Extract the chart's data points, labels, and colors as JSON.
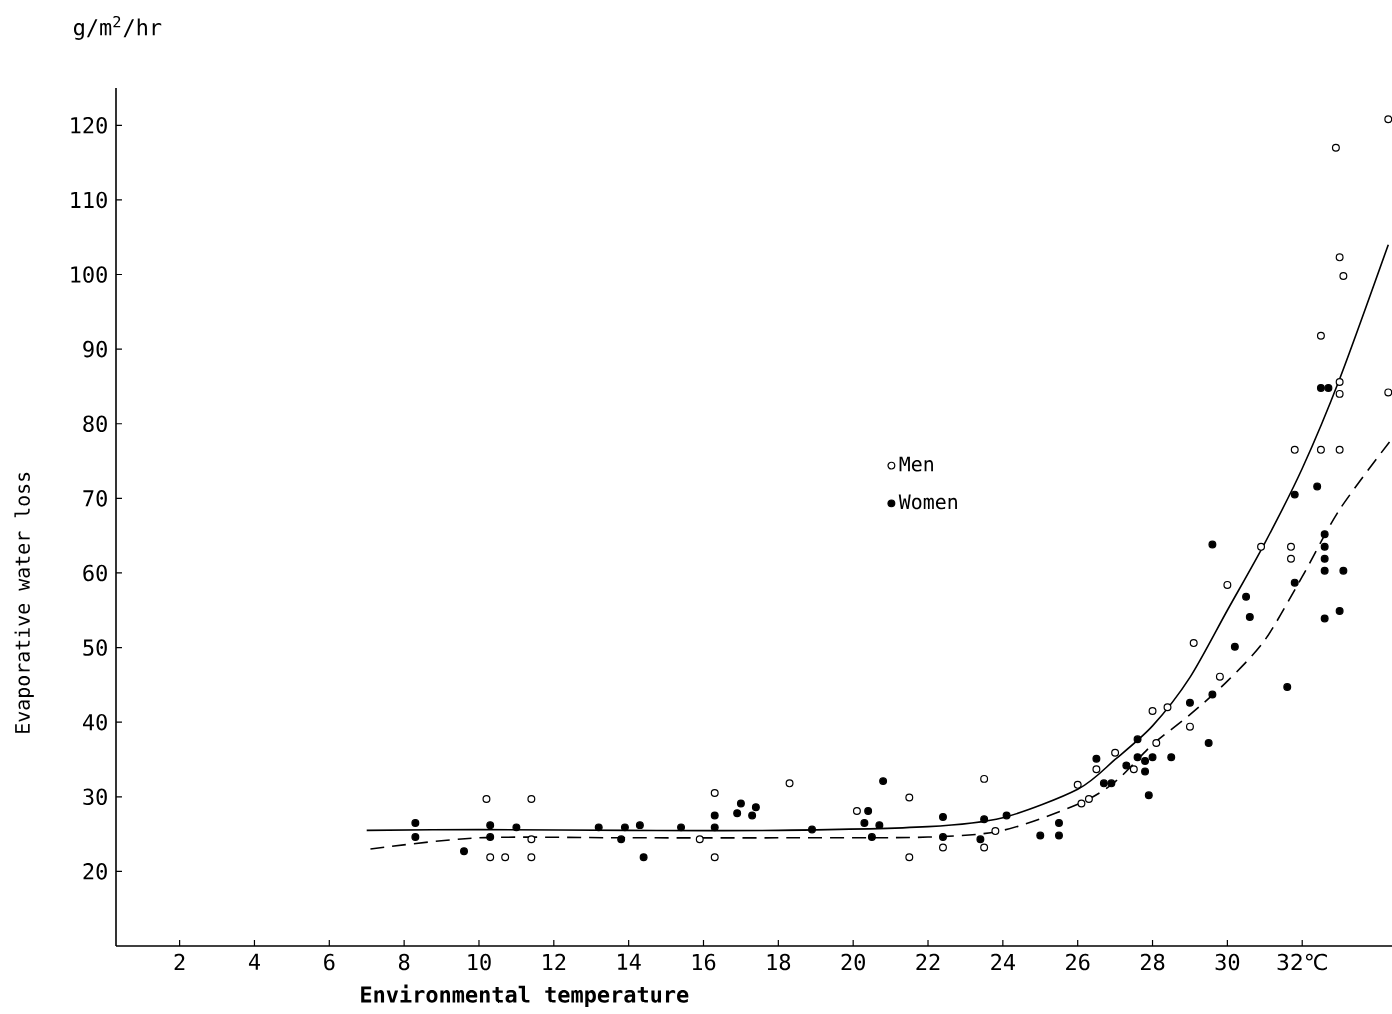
{
  "chart_data": {
    "type": "scatter",
    "xlabel": "Environmental temperature",
    "ylabel": "Evaporative water loss",
    "annotations": [
      "g/m$^{2}$/hr"
    ],
    "xlim": [
      0.3,
      34.4
    ],
    "ylim": [
      10,
      125
    ],
    "xticks": [
      2,
      4,
      6,
      8,
      10,
      12,
      14,
      16,
      18,
      20,
      22,
      24,
      26,
      28,
      30,
      {
        "value": 32,
        "label": "32℃"
      }
    ],
    "yticks": [
      20,
      30,
      40,
      50,
      60,
      70,
      80,
      90,
      100,
      110,
      120
    ],
    "grid": false,
    "legend": "center",
    "series": [
      {
        "name": "Men",
        "color": "#000000",
        "marker": "circle",
        "x": [
          34.3,
          32.9,
          33.0,
          33.1,
          32.5,
          33.0,
          33.0,
          34.3,
          31.8,
          32.5,
          33.0,
          30.9,
          31.7,
          31.7,
          30.0,
          29.1,
          29.8,
          28.4,
          28.0,
          29.0,
          28.1,
          27.0,
          26.5,
          27.5,
          26.0,
          26.1,
          26.3,
          18.3,
          23.5,
          21.5,
          20.1,
          23.8,
          22.4,
          23.5,
          21.5,
          10.2,
          11.4,
          11.4,
          10.3,
          10.7,
          11.4,
          16.3,
          15.9,
          16.3
        ],
        "values": [
          120.8,
          117.0,
          102.3,
          99.8,
          91.8,
          85.6,
          84.0,
          84.2,
          76.5,
          76.5,
          76.5,
          63.5,
          63.5,
          61.9,
          58.4,
          50.6,
          46.1,
          42.0,
          41.5,
          39.4,
          37.2,
          35.9,
          33.7,
          33.7,
          31.6,
          29.1,
          29.7,
          31.8,
          32.4,
          29.9,
          28.1,
          25.4,
          23.2,
          23.2,
          21.9,
          29.7,
          29.7,
          24.3,
          21.9,
          21.9,
          21.9,
          30.5,
          24.3,
          21.9
        ]
      },
      {
        "name": "Women",
        "color": "#000000",
        "marker": "circle",
        "x": [
          32.5,
          32.7,
          32.4,
          31.8,
          29.6,
          32.6,
          32.6,
          32.6,
          32.6,
          33.1,
          31.8,
          30.5,
          30.6,
          32.6,
          33.0,
          30.2,
          31.6,
          29.6,
          29.0,
          27.6,
          29.5,
          28.5,
          26.5,
          27.3,
          27.6,
          27.8,
          28.0,
          27.8,
          26.7,
          26.9,
          27.9,
          25.5,
          25.0,
          25.5,
          20.8,
          17.0,
          16.9,
          17.4,
          17.3,
          20.4,
          20.3,
          20.7,
          18.9,
          22.4,
          23.5,
          24.1,
          20.5,
          22.4,
          23.4,
          8.3,
          8.3,
          10.3,
          10.3,
          11.0,
          9.6,
          13.2,
          13.9,
          14.3,
          13.8,
          14.4,
          15.4,
          16.3,
          16.3
        ],
        "values": [
          84.8,
          84.8,
          71.6,
          70.5,
          63.8,
          65.2,
          63.5,
          61.9,
          60.3,
          60.3,
          58.7,
          56.8,
          54.1,
          53.9,
          54.9,
          50.1,
          44.7,
          43.7,
          42.6,
          37.7,
          37.2,
          35.3,
          35.1,
          34.2,
          35.3,
          34.8,
          35.3,
          33.4,
          31.8,
          31.8,
          30.2,
          26.5,
          24.8,
          24.8,
          32.1,
          29.1,
          27.8,
          28.6,
          27.5,
          28.1,
          26.5,
          26.2,
          25.6,
          27.3,
          27.0,
          27.5,
          24.6,
          24.6,
          24.3,
          26.5,
          24.6,
          26.2,
          24.6,
          25.9,
          22.7,
          25.9,
          25.9,
          26.2,
          24.3,
          21.9,
          25.9,
          25.9,
          27.5
        ]
      },
      {
        "type": "line",
        "line_style": "solid",
        "marker": "none",
        "color": "#000000",
        "x": [
          7,
          10,
          14,
          18,
          22,
          24,
          26,
          27,
          28,
          29,
          30,
          31,
          32,
          33,
          34.3
        ],
        "values": [
          25.5,
          25.6,
          25.5,
          25.5,
          26,
          27.2,
          31,
          35,
          39.5,
          46,
          55,
          64,
          74,
          86,
          104
        ]
      },
      {
        "type": "line",
        "line_style": "dashed",
        "marker": "none",
        "color": "#000000",
        "x": [
          7.1,
          10,
          14,
          18,
          22,
          24,
          26,
          27,
          28,
          29,
          30,
          31,
          32,
          33,
          34.4
        ],
        "values": [
          23,
          24.5,
          24.5,
          24.5,
          24.6,
          25.5,
          29,
          32,
          37,
          41,
          45.5,
          51,
          59.5,
          68.5,
          78
        ]
      }
    ]
  }
}
